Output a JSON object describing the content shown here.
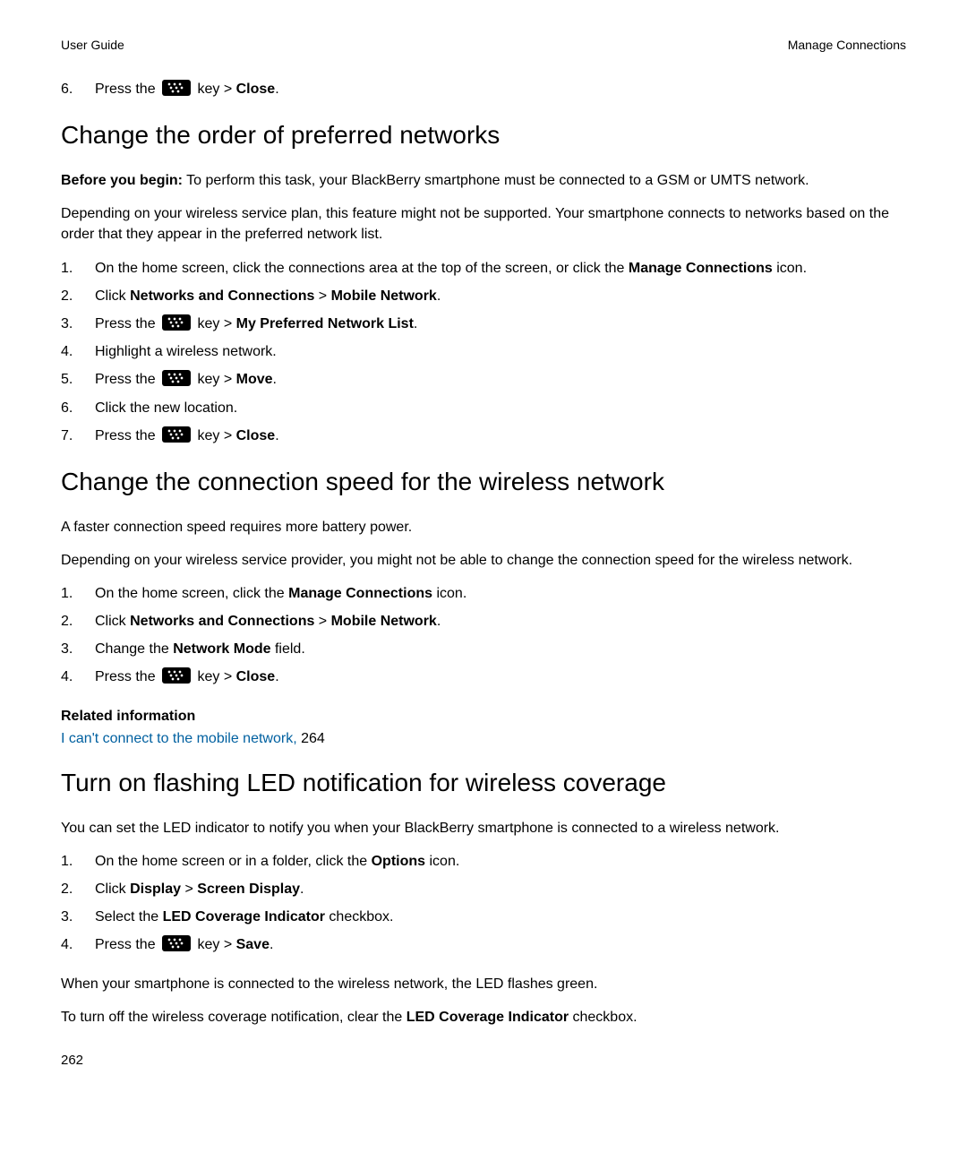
{
  "header": {
    "left": "User Guide",
    "right": "Manage Connections"
  },
  "top_step": {
    "num": "6.",
    "parts": [
      "Press the ",
      " key > ",
      "Close",
      "."
    ]
  },
  "sec1": {
    "title": "Change the order of preferred networks",
    "before_label": "Before you begin:",
    "before_text": " To perform this task, your BlackBerry smartphone must be connected to a GSM or UMTS network.",
    "para2": "Depending on your wireless service plan, this feature might not be supported. Your smartphone connects to networks based on the order that they appear in the preferred network list.",
    "steps": [
      {
        "num": "1.",
        "segs": [
          {
            "t": "On the home screen, click the connections area at the top of the screen, or click the "
          },
          {
            "t": "Manage Connections",
            "b": true
          },
          {
            "t": " icon."
          }
        ]
      },
      {
        "num": "2.",
        "segs": [
          {
            "t": "Click "
          },
          {
            "t": "Networks and Connections",
            "b": true
          },
          {
            "t": " > "
          },
          {
            "t": "Mobile Network",
            "b": true
          },
          {
            "t": "."
          }
        ]
      },
      {
        "num": "3.",
        "segs": [
          {
            "t": "Press the "
          },
          {
            "icon": true
          },
          {
            "t": " key > "
          },
          {
            "t": "My Preferred Network List",
            "b": true
          },
          {
            "t": "."
          }
        ]
      },
      {
        "num": "4.",
        "segs": [
          {
            "t": "Highlight a wireless network."
          }
        ]
      },
      {
        "num": "5.",
        "segs": [
          {
            "t": "Press the "
          },
          {
            "icon": true
          },
          {
            "t": " key > "
          },
          {
            "t": "Move",
            "b": true
          },
          {
            "t": "."
          }
        ]
      },
      {
        "num": "6.",
        "segs": [
          {
            "t": "Click the new location."
          }
        ]
      },
      {
        "num": "7.",
        "segs": [
          {
            "t": "Press the "
          },
          {
            "icon": true
          },
          {
            "t": " key > "
          },
          {
            "t": "Close",
            "b": true
          },
          {
            "t": "."
          }
        ]
      }
    ]
  },
  "sec2": {
    "title": "Change the connection speed for the wireless network",
    "para1": "A faster connection speed requires more battery power.",
    "para2": "Depending on your wireless service provider, you might not be able to change the connection speed for the wireless network.",
    "steps": [
      {
        "num": "1.",
        "segs": [
          {
            "t": "On the home screen, click the "
          },
          {
            "t": "Manage Connections",
            "b": true
          },
          {
            "t": " icon."
          }
        ]
      },
      {
        "num": "2.",
        "segs": [
          {
            "t": "Click "
          },
          {
            "t": "Networks and Connections",
            "b": true
          },
          {
            "t": " > "
          },
          {
            "t": "Mobile Network",
            "b": true
          },
          {
            "t": "."
          }
        ]
      },
      {
        "num": "3.",
        "segs": [
          {
            "t": "Change the "
          },
          {
            "t": "Network Mode",
            "b": true
          },
          {
            "t": " field."
          }
        ]
      },
      {
        "num": "4.",
        "segs": [
          {
            "t": "Press the "
          },
          {
            "icon": true
          },
          {
            "t": " key > "
          },
          {
            "t": "Close",
            "b": true
          },
          {
            "t": "."
          }
        ]
      }
    ],
    "related_head": "Related information",
    "related_link": "I can't connect to the mobile network,",
    "related_page": " 264"
  },
  "sec3": {
    "title": "Turn on flashing LED notification for wireless coverage",
    "para1": "You can set the LED indicator to notify you when your BlackBerry smartphone is connected to a wireless network.",
    "steps": [
      {
        "num": "1.",
        "segs": [
          {
            "t": "On the home screen or in a folder, click the "
          },
          {
            "t": "Options",
            "b": true
          },
          {
            "t": " icon."
          }
        ]
      },
      {
        "num": "2.",
        "segs": [
          {
            "t": "Click "
          },
          {
            "t": "Display",
            "b": true
          },
          {
            "t": " > "
          },
          {
            "t": "Screen Display",
            "b": true
          },
          {
            "t": "."
          }
        ]
      },
      {
        "num": "3.",
        "segs": [
          {
            "t": "Select the "
          },
          {
            "t": "LED Coverage Indicator",
            "b": true
          },
          {
            "t": " checkbox."
          }
        ]
      },
      {
        "num": "4.",
        "segs": [
          {
            "t": "Press the "
          },
          {
            "icon": true
          },
          {
            "t": " key > "
          },
          {
            "t": "Save",
            "b": true
          },
          {
            "t": "."
          }
        ]
      }
    ],
    "para2": "When your smartphone is connected to the wireless network, the LED flashes green.",
    "para3_segs": [
      {
        "t": "To turn off the wireless coverage notification, clear the "
      },
      {
        "t": "LED Coverage Indicator",
        "b": true
      },
      {
        "t": " checkbox."
      }
    ]
  },
  "page_number": "262"
}
